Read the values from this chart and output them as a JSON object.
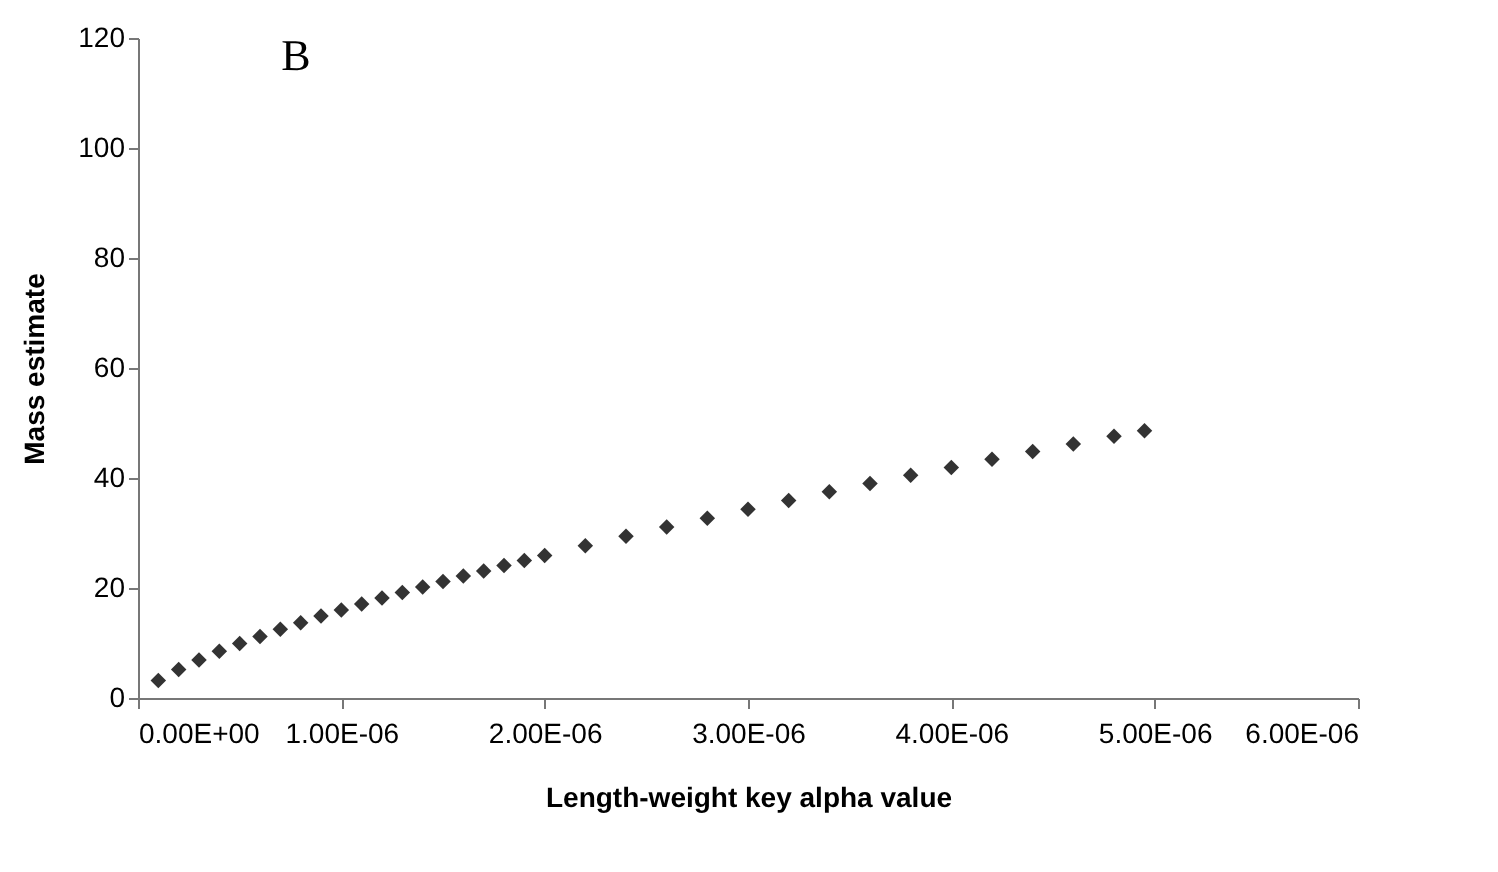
{
  "chart_data": {
    "type": "scatter",
    "title": "B",
    "xlabel": "Length-weight key alpha value",
    "ylabel": "Mass estimate",
    "x": [
      1e-07,
      2e-07,
      3e-07,
      4e-07,
      5e-07,
      6e-07,
      7e-07,
      8e-07,
      9e-07,
      1e-06,
      1.1e-06,
      1.2e-06,
      1.3e-06,
      1.4e-06,
      1.5e-06,
      1.6e-06,
      1.7e-06,
      1.8e-06,
      1.9e-06,
      2e-06,
      2.2e-06,
      2.4e-06,
      2.6e-06,
      2.8e-06,
      3e-06,
      3.2e-06,
      3.4e-06,
      3.6e-06,
      3.8e-06,
      4e-06,
      4.2e-06,
      4.4e-06,
      4.6e-06,
      4.8e-06,
      4.95e-06
    ],
    "series": [
      {
        "color": "#333333",
        "values": [
          3.2,
          5.2,
          6.9,
          8.5,
          9.9,
          11.2,
          12.5,
          13.7,
          14.9,
          16,
          17.1,
          18.2,
          19.2,
          20.2,
          21.2,
          22.2,
          23.1,
          24.1,
          25,
          25.9,
          27.7,
          29.4,
          31.1,
          32.7,
          34.3,
          35.9,
          37.5,
          39,
          40.5,
          41.9,
          43.4,
          44.8,
          46.2,
          47.6,
          48.6
        ]
      }
    ],
    "marker": "diamond",
    "grid": false,
    "xlim": [
      0,
      6e-06
    ],
    "xticks": [
      {
        "value": 0,
        "label": "0.00E+00"
      },
      {
        "value": 1e-06,
        "label": "1.00E-06"
      },
      {
        "value": 2e-06,
        "label": "2.00E-06"
      },
      {
        "value": 3e-06,
        "label": "3.00E-06"
      },
      {
        "value": 4e-06,
        "label": "4.00E-06"
      },
      {
        "value": 5e-06,
        "label": "5.00E-06"
      },
      {
        "value": 6e-06,
        "label": "6.00E-06"
      }
    ],
    "ylim": [
      0,
      120
    ],
    "yticks": [
      0,
      20,
      40,
      60,
      80,
      100,
      120
    ]
  }
}
